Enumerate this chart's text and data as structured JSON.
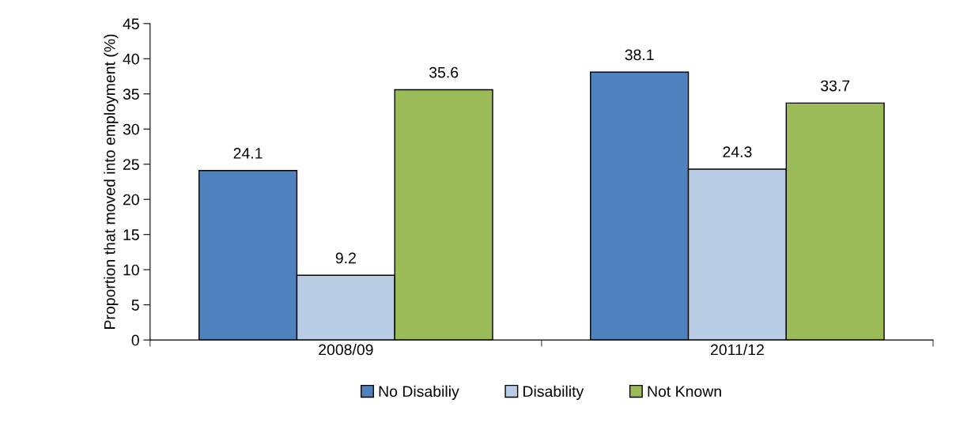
{
  "chart_data": {
    "type": "bar",
    "ylabel": "Proportion that moved into employment (%)",
    "categories": [
      "2008/09",
      "2011/12"
    ],
    "series": [
      {
        "name": "No Disabiliy",
        "color": "#4f81bd",
        "values": [
          24.1,
          38.1
        ]
      },
      {
        "name": "Disability",
        "color": "#b9cde5",
        "values": [
          9.2,
          24.3
        ]
      },
      {
        "name": "Not Known",
        "color": "#9bbb59",
        "values": [
          35.6,
          33.7
        ]
      }
    ],
    "ylim": [
      0,
      45
    ],
    "yticks": [
      0,
      5,
      10,
      15,
      20,
      25,
      30,
      35,
      40,
      45
    ],
    "grid": false,
    "legend": "bottom",
    "data_labels": true
  }
}
